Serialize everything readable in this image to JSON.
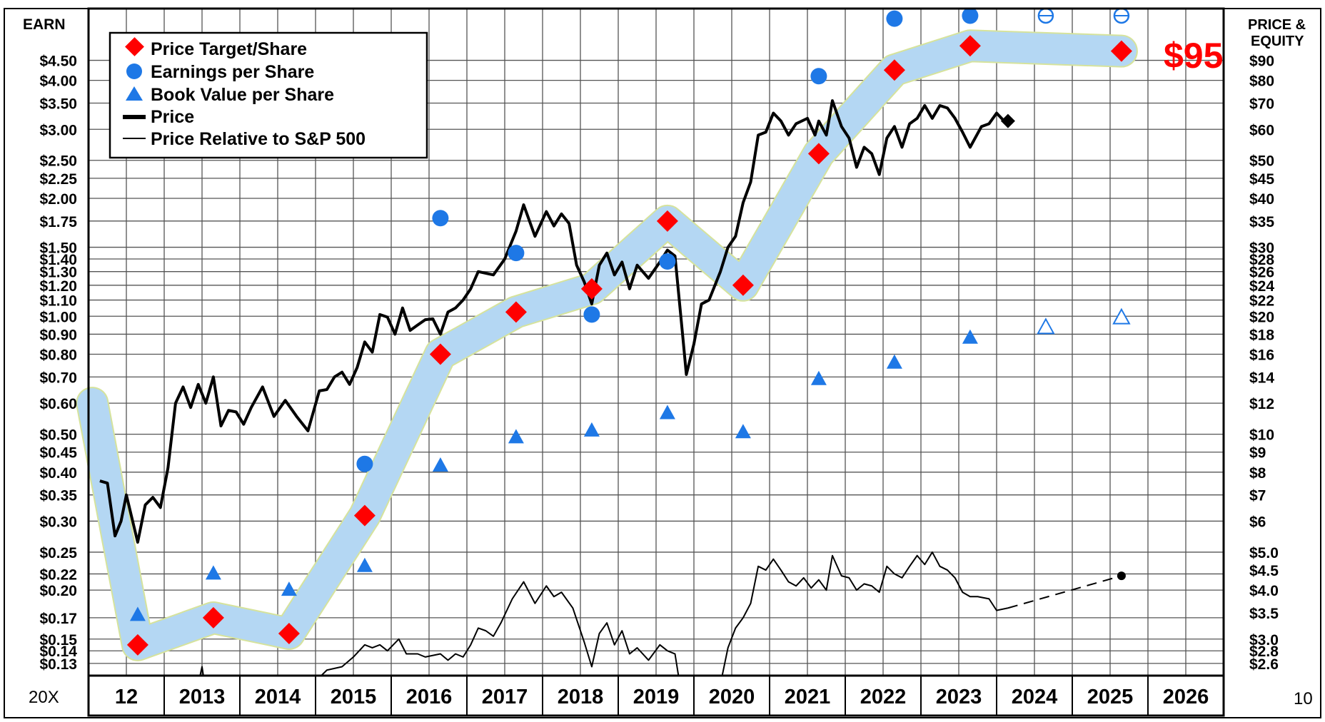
{
  "chart_data": {
    "type": "line",
    "scale": "log",
    "left_axis_title": "EARN",
    "right_axis_title_line1": "PRICE &",
    "right_axis_title_line2": "EQUITY",
    "corner_left": "20X",
    "corner_right": "10",
    "big_label": "$95",
    "left_ticks": [
      {
        "label": "$4.50",
        "value": 4.5
      },
      {
        "label": "$4.00",
        "value": 4.0
      },
      {
        "label": "$3.50",
        "value": 3.5
      },
      {
        "label": "$3.00",
        "value": 3.0
      },
      {
        "label": "$2.50",
        "value": 2.5
      },
      {
        "label": "$2.25",
        "value": 2.25
      },
      {
        "label": "$2.00",
        "value": 2.0
      },
      {
        "label": "$1.75",
        "value": 1.75
      },
      {
        "label": "$1.50",
        "value": 1.5
      },
      {
        "label": "$1.40",
        "value": 1.4
      },
      {
        "label": "$1.30",
        "value": 1.3
      },
      {
        "label": "$1.20",
        "value": 1.2
      },
      {
        "label": "$1.10",
        "value": 1.1
      },
      {
        "label": "$1.00",
        "value": 1.0
      },
      {
        "label": "$0.90",
        "value": 0.9
      },
      {
        "label": "$0.80",
        "value": 0.8
      },
      {
        "label": "$0.70",
        "value": 0.7
      },
      {
        "label": "$0.60",
        "value": 0.6
      },
      {
        "label": "$0.50",
        "value": 0.5
      },
      {
        "label": "$0.45",
        "value": 0.45
      },
      {
        "label": "$0.40",
        "value": 0.4
      },
      {
        "label": "$0.35",
        "value": 0.35
      },
      {
        "label": "$0.30",
        "value": 0.3
      },
      {
        "label": "$0.25",
        "value": 0.25
      },
      {
        "label": "$0.22",
        "value": 0.22
      },
      {
        "label": "$0.20",
        "value": 0.2
      },
      {
        "label": "$0.17",
        "value": 0.17
      },
      {
        "label": "$0.15",
        "value": 0.15
      },
      {
        "label": "$0.14",
        "value": 0.14
      },
      {
        "label": "$0.13",
        "value": 0.13
      }
    ],
    "right_ticks": [
      {
        "label": "$90",
        "value": 90
      },
      {
        "label": "$80",
        "value": 80
      },
      {
        "label": "$70",
        "value": 70
      },
      {
        "label": "$60",
        "value": 60
      },
      {
        "label": "$50",
        "value": 50
      },
      {
        "label": "$45",
        "value": 45
      },
      {
        "label": "$40",
        "value": 40
      },
      {
        "label": "$35",
        "value": 35
      },
      {
        "label": "$30",
        "value": 30
      },
      {
        "label": "$28",
        "value": 28
      },
      {
        "label": "$26",
        "value": 26
      },
      {
        "label": "$24",
        "value": 24
      },
      {
        "label": "$22",
        "value": 22
      },
      {
        "label": "$20",
        "value": 20
      },
      {
        "label": "$18",
        "value": 18
      },
      {
        "label": "$16",
        "value": 16
      },
      {
        "label": "$14",
        "value": 14
      },
      {
        "label": "$12",
        "value": 12
      },
      {
        "label": "$10",
        "value": 10
      },
      {
        "label": "$9",
        "value": 9
      },
      {
        "label": "$8",
        "value": 8
      },
      {
        "label": "$7",
        "value": 7
      },
      {
        "label": "$6",
        "value": 6
      },
      {
        "label": "$5.0",
        "value": 5.0
      },
      {
        "label": "$4.5",
        "value": 4.5
      },
      {
        "label": "$4.0",
        "value": 4.0
      },
      {
        "label": "$3.5",
        "value": 3.5
      },
      {
        "label": "$3.0",
        "value": 3.0
      },
      {
        "label": "$2.8",
        "value": 2.8
      },
      {
        "label": "$2.6",
        "value": 2.6
      }
    ],
    "x_labels": [
      "12",
      "2013",
      "2014",
      "2015",
      "2016",
      "2017",
      "2018",
      "2019",
      "2020",
      "2021",
      "2022",
      "2023",
      "2024",
      "2025",
      "2026"
    ],
    "legend": [
      {
        "label": "Price Target/Share",
        "marker": "red-diamond"
      },
      {
        "label": "Earnings per Share",
        "marker": "blue-circle"
      },
      {
        "label": "Book Value per Share",
        "marker": "blue-triangle"
      },
      {
        "label": "Price",
        "marker": "thick-black-line"
      },
      {
        "label": "Price Relative to S&P 500",
        "marker": "thin-black-line"
      }
    ],
    "colors": {
      "target": "#ff0000",
      "eps": "#1e78e6",
      "band": "#b4d7f3",
      "band_edge": "#d6e39c",
      "price": "#000000"
    },
    "price_target": [
      {
        "x": 2012.5,
        "y": 2.9
      },
      {
        "x": 2013.5,
        "y": 3.4
      },
      {
        "x": 2014.5,
        "y": 3.1
      },
      {
        "x": 2015.5,
        "y": 6.2
      },
      {
        "x": 2016.5,
        "y": 16
      },
      {
        "x": 2017.5,
        "y": 20.5
      },
      {
        "x": 2018.5,
        "y": 23.5
      },
      {
        "x": 2019.5,
        "y": 35
      },
      {
        "x": 2020.5,
        "y": 24
      },
      {
        "x": 2021.5,
        "y": 52
      },
      {
        "x": 2022.5,
        "y": 85
      },
      {
        "x": 2023.5,
        "y": 98
      },
      {
        "x": 2025.5,
        "y": 95
      }
    ],
    "target_band": [
      {
        "x": 2011.9,
        "y": 12
      },
      {
        "x": 2012.5,
        "y": 2.9
      },
      {
        "x": 2013.5,
        "y": 3.4
      },
      {
        "x": 2014.5,
        "y": 3.1
      },
      {
        "x": 2015.5,
        "y": 6.2
      },
      {
        "x": 2016.5,
        "y": 16
      },
      {
        "x": 2017.5,
        "y": 20.5
      },
      {
        "x": 2018.5,
        "y": 23.5
      },
      {
        "x": 2019.5,
        "y": 35
      },
      {
        "x": 2020.5,
        "y": 24
      },
      {
        "x": 2021.5,
        "y": 52
      },
      {
        "x": 2022.5,
        "y": 85
      },
      {
        "x": 2023.5,
        "y": 98
      },
      {
        "x": 2025.5,
        "y": 95
      }
    ],
    "eps": [
      {
        "x": 2015.5,
        "y": 0.42,
        "hollow": false
      },
      {
        "x": 2016.5,
        "y": 1.78,
        "hollow": false
      },
      {
        "x": 2017.5,
        "y": 1.45,
        "hollow": false
      },
      {
        "x": 2018.5,
        "y": 1.01,
        "hollow": false
      },
      {
        "x": 2019.5,
        "y": 1.38,
        "hollow": false
      },
      {
        "x": 2021.5,
        "y": 4.1,
        "hollow": false
      },
      {
        "x": 2022.5,
        "y": 5.75,
        "hollow": false
      },
      {
        "x": 2023.5,
        "y": 5.85,
        "hollow": false
      },
      {
        "x": 2024.5,
        "y": 5.85,
        "hollow": true
      },
      {
        "x": 2025.5,
        "y": 5.85,
        "hollow": true
      }
    ],
    "book_value": [
      {
        "x": 2012.5,
        "y": 3.45,
        "hollow": false
      },
      {
        "x": 2013.5,
        "y": 4.4,
        "hollow": false
      },
      {
        "x": 2014.5,
        "y": 4.0,
        "hollow": false
      },
      {
        "x": 2015.5,
        "y": 4.6,
        "hollow": false
      },
      {
        "x": 2016.5,
        "y": 8.3,
        "hollow": false
      },
      {
        "x": 2017.5,
        "y": 9.8,
        "hollow": false
      },
      {
        "x": 2018.5,
        "y": 10.2,
        "hollow": false
      },
      {
        "x": 2019.5,
        "y": 11.3,
        "hollow": false
      },
      {
        "x": 2020.5,
        "y": 10.1,
        "hollow": false
      },
      {
        "x": 2021.5,
        "y": 13.8,
        "hollow": false
      },
      {
        "x": 2022.5,
        "y": 15.2,
        "hollow": false
      },
      {
        "x": 2023.5,
        "y": 17.6,
        "hollow": false
      },
      {
        "x": 2024.5,
        "y": 18.7,
        "hollow": true
      },
      {
        "x": 2025.5,
        "y": 19.8,
        "hollow": true
      }
    ],
    "price": [
      {
        "x": 2012.0,
        "y": 7.6
      },
      {
        "x": 2012.1,
        "y": 7.5
      },
      {
        "x": 2012.2,
        "y": 5.5
      },
      {
        "x": 2012.28,
        "y": 6.0
      },
      {
        "x": 2012.35,
        "y": 7.0
      },
      {
        "x": 2012.5,
        "y": 5.3
      },
      {
        "x": 2012.6,
        "y": 6.6
      },
      {
        "x": 2012.7,
        "y": 6.9
      },
      {
        "x": 2012.8,
        "y": 6.5
      },
      {
        "x": 2012.9,
        "y": 8.2
      },
      {
        "x": 2013.0,
        "y": 12.0
      },
      {
        "x": 2013.1,
        "y": 13.2
      },
      {
        "x": 2013.2,
        "y": 11.7
      },
      {
        "x": 2013.3,
        "y": 13.4
      },
      {
        "x": 2013.4,
        "y": 12.0
      },
      {
        "x": 2013.5,
        "y": 14.0
      },
      {
        "x": 2013.6,
        "y": 10.5
      },
      {
        "x": 2013.7,
        "y": 11.5
      },
      {
        "x": 2013.8,
        "y": 11.4
      },
      {
        "x": 2013.9,
        "y": 10.6
      },
      {
        "x": 2014.0,
        "y": 11.7
      },
      {
        "x": 2014.15,
        "y": 13.2
      },
      {
        "x": 2014.3,
        "y": 11.1
      },
      {
        "x": 2014.45,
        "y": 12.2
      },
      {
        "x": 2014.6,
        "y": 11.1
      },
      {
        "x": 2014.75,
        "y": 10.2
      },
      {
        "x": 2014.9,
        "y": 12.9
      },
      {
        "x": 2015.0,
        "y": 13.0
      },
      {
        "x": 2015.1,
        "y": 14.0
      },
      {
        "x": 2015.2,
        "y": 14.4
      },
      {
        "x": 2015.3,
        "y": 13.4
      },
      {
        "x": 2015.4,
        "y": 14.8
      },
      {
        "x": 2015.5,
        "y": 17.2
      },
      {
        "x": 2015.6,
        "y": 16.2
      },
      {
        "x": 2015.7,
        "y": 20.2
      },
      {
        "x": 2015.8,
        "y": 19.9
      },
      {
        "x": 2015.9,
        "y": 18.0
      },
      {
        "x": 2016.0,
        "y": 21.0
      },
      {
        "x": 2016.1,
        "y": 18.4
      },
      {
        "x": 2016.2,
        "y": 19.0
      },
      {
        "x": 2016.3,
        "y": 19.6
      },
      {
        "x": 2016.4,
        "y": 19.7
      },
      {
        "x": 2016.5,
        "y": 18.0
      },
      {
        "x": 2016.6,
        "y": 20.5
      },
      {
        "x": 2016.7,
        "y": 21.0
      },
      {
        "x": 2016.8,
        "y": 22.0
      },
      {
        "x": 2016.9,
        "y": 23.5
      },
      {
        "x": 2017.0,
        "y": 26.0
      },
      {
        "x": 2017.2,
        "y": 25.5
      },
      {
        "x": 2017.35,
        "y": 28.0
      },
      {
        "x": 2017.5,
        "y": 33.0
      },
      {
        "x": 2017.6,
        "y": 38.5
      },
      {
        "x": 2017.75,
        "y": 32.0
      },
      {
        "x": 2017.9,
        "y": 37.0
      },
      {
        "x": 2018.0,
        "y": 34.0
      },
      {
        "x": 2018.1,
        "y": 36.5
      },
      {
        "x": 2018.2,
        "y": 34.5
      },
      {
        "x": 2018.3,
        "y": 27.0
      },
      {
        "x": 2018.4,
        "y": 24.5
      },
      {
        "x": 2018.5,
        "y": 21.5
      },
      {
        "x": 2018.6,
        "y": 27.0
      },
      {
        "x": 2018.7,
        "y": 29.0
      },
      {
        "x": 2018.8,
        "y": 25.5
      },
      {
        "x": 2018.9,
        "y": 27.5
      },
      {
        "x": 2019.0,
        "y": 23.5
      },
      {
        "x": 2019.1,
        "y": 27.0
      },
      {
        "x": 2019.25,
        "y": 25.0
      },
      {
        "x": 2019.4,
        "y": 27.5
      },
      {
        "x": 2019.5,
        "y": 29.5
      },
      {
        "x": 2019.6,
        "y": 28.5
      },
      {
        "x": 2019.7,
        "y": 18.0
      },
      {
        "x": 2019.75,
        "y": 14.2
      },
      {
        "x": 2019.85,
        "y": 17.0
      },
      {
        "x": 2019.95,
        "y": 21.5
      },
      {
        "x": 2020.05,
        "y": 22.0
      },
      {
        "x": 2020.2,
        "y": 26.0
      },
      {
        "x": 2020.3,
        "y": 30.0
      },
      {
        "x": 2020.4,
        "y": 32.0
      },
      {
        "x": 2020.5,
        "y": 39.0
      },
      {
        "x": 2020.6,
        "y": 44.0
      },
      {
        "x": 2020.7,
        "y": 58.0
      },
      {
        "x": 2020.8,
        "y": 59.0
      },
      {
        "x": 2020.9,
        "y": 66.0
      },
      {
        "x": 2021.0,
        "y": 63.0
      },
      {
        "x": 2021.1,
        "y": 58.0
      },
      {
        "x": 2021.2,
        "y": 62.0
      },
      {
        "x": 2021.35,
        "y": 64.0
      },
      {
        "x": 2021.45,
        "y": 58.0
      },
      {
        "x": 2021.5,
        "y": 63.0
      },
      {
        "x": 2021.6,
        "y": 58.0
      },
      {
        "x": 2021.68,
        "y": 71.0
      },
      {
        "x": 2021.8,
        "y": 61.0
      },
      {
        "x": 2021.9,
        "y": 57.0
      },
      {
        "x": 2022.0,
        "y": 48.0
      },
      {
        "x": 2022.1,
        "y": 54.0
      },
      {
        "x": 2022.2,
        "y": 52.0
      },
      {
        "x": 2022.3,
        "y": 46.0
      },
      {
        "x": 2022.4,
        "y": 57.0
      },
      {
        "x": 2022.5,
        "y": 61.0
      },
      {
        "x": 2022.6,
        "y": 54.0
      },
      {
        "x": 2022.7,
        "y": 62.0
      },
      {
        "x": 2022.8,
        "y": 64.0
      },
      {
        "x": 2022.9,
        "y": 69.0
      },
      {
        "x": 2023.0,
        "y": 64.0
      },
      {
        "x": 2023.1,
        "y": 69.0
      },
      {
        "x": 2023.2,
        "y": 68.0
      },
      {
        "x": 2023.3,
        "y": 64.0
      },
      {
        "x": 2023.4,
        "y": 59.0
      },
      {
        "x": 2023.5,
        "y": 54.0
      },
      {
        "x": 2023.65,
        "y": 61.0
      },
      {
        "x": 2023.75,
        "y": 62.0
      },
      {
        "x": 2023.85,
        "y": 66.0
      },
      {
        "x": 2023.95,
        "y": 63.0
      }
    ],
    "price_last": {
      "x": 2024.0,
      "y": 63.0
    },
    "relative": [
      {
        "x": 2012.0,
        "y": 1.8
      },
      {
        "x": 2012.6,
        "y": 1.85
      },
      {
        "x": 2013.3,
        "y": 2.3
      },
      {
        "x": 2013.35,
        "y": 2.55
      },
      {
        "x": 2013.4,
        "y": 2.2
      },
      {
        "x": 2014.6,
        "y": 2.1
      },
      {
        "x": 2015.0,
        "y": 2.5
      },
      {
        "x": 2015.2,
        "y": 2.55
      },
      {
        "x": 2015.35,
        "y": 2.7
      },
      {
        "x": 2015.5,
        "y": 2.9
      },
      {
        "x": 2015.6,
        "y": 2.85
      },
      {
        "x": 2015.7,
        "y": 2.9
      },
      {
        "x": 2015.8,
        "y": 2.8
      },
      {
        "x": 2015.95,
        "y": 3.0
      },
      {
        "x": 2016.05,
        "y": 2.75
      },
      {
        "x": 2016.2,
        "y": 2.75
      },
      {
        "x": 2016.3,
        "y": 2.7
      },
      {
        "x": 2016.5,
        "y": 2.75
      },
      {
        "x": 2016.6,
        "y": 2.65
      },
      {
        "x": 2016.7,
        "y": 2.75
      },
      {
        "x": 2016.8,
        "y": 2.7
      },
      {
        "x": 2016.9,
        "y": 2.9
      },
      {
        "x": 2017.0,
        "y": 3.2
      },
      {
        "x": 2017.1,
        "y": 3.15
      },
      {
        "x": 2017.2,
        "y": 3.05
      },
      {
        "x": 2017.3,
        "y": 3.3
      },
      {
        "x": 2017.45,
        "y": 3.8
      },
      {
        "x": 2017.6,
        "y": 4.2
      },
      {
        "x": 2017.75,
        "y": 3.7
      },
      {
        "x": 2017.9,
        "y": 4.1
      },
      {
        "x": 2018.0,
        "y": 3.85
      },
      {
        "x": 2018.1,
        "y": 3.95
      },
      {
        "x": 2018.25,
        "y": 3.6
      },
      {
        "x": 2018.4,
        "y": 2.95
      },
      {
        "x": 2018.5,
        "y": 2.55
      },
      {
        "x": 2018.6,
        "y": 3.1
      },
      {
        "x": 2018.7,
        "y": 3.3
      },
      {
        "x": 2018.8,
        "y": 2.9
      },
      {
        "x": 2018.9,
        "y": 3.15
      },
      {
        "x": 2019.0,
        "y": 2.75
      },
      {
        "x": 2019.1,
        "y": 2.85
      },
      {
        "x": 2019.25,
        "y": 2.65
      },
      {
        "x": 2019.4,
        "y": 2.9
      },
      {
        "x": 2019.5,
        "y": 2.8
      },
      {
        "x": 2019.6,
        "y": 2.75
      },
      {
        "x": 2019.68,
        "y": 2.2
      },
      {
        "x": 2020.2,
        "y": 2.3
      },
      {
        "x": 2020.3,
        "y": 2.85
      },
      {
        "x": 2020.4,
        "y": 3.2
      },
      {
        "x": 2020.5,
        "y": 3.4
      },
      {
        "x": 2020.6,
        "y": 3.7
      },
      {
        "x": 2020.7,
        "y": 4.6
      },
      {
        "x": 2020.8,
        "y": 4.5
      },
      {
        "x": 2020.9,
        "y": 4.8
      },
      {
        "x": 2021.0,
        "y": 4.5
      },
      {
        "x": 2021.1,
        "y": 4.2
      },
      {
        "x": 2021.2,
        "y": 4.1
      },
      {
        "x": 2021.3,
        "y": 4.3
      },
      {
        "x": 2021.4,
        "y": 4.05
      },
      {
        "x": 2021.5,
        "y": 4.25
      },
      {
        "x": 2021.6,
        "y": 4.0
      },
      {
        "x": 2021.68,
        "y": 4.9
      },
      {
        "x": 2021.8,
        "y": 4.35
      },
      {
        "x": 2021.9,
        "y": 4.3
      },
      {
        "x": 2022.0,
        "y": 4.0
      },
      {
        "x": 2022.1,
        "y": 4.15
      },
      {
        "x": 2022.2,
        "y": 4.1
      },
      {
        "x": 2022.3,
        "y": 3.95
      },
      {
        "x": 2022.4,
        "y": 4.6
      },
      {
        "x": 2022.5,
        "y": 4.4
      },
      {
        "x": 2022.6,
        "y": 4.3
      },
      {
        "x": 2022.7,
        "y": 4.6
      },
      {
        "x": 2022.8,
        "y": 4.9
      },
      {
        "x": 2022.9,
        "y": 4.65
      },
      {
        "x": 2023.0,
        "y": 5.0
      },
      {
        "x": 2023.1,
        "y": 4.6
      },
      {
        "x": 2023.2,
        "y": 4.5
      },
      {
        "x": 2023.3,
        "y": 4.3
      },
      {
        "x": 2023.4,
        "y": 3.95
      },
      {
        "x": 2023.5,
        "y": 3.85
      },
      {
        "x": 2023.6,
        "y": 3.85
      },
      {
        "x": 2023.75,
        "y": 3.8
      },
      {
        "x": 2023.85,
        "y": 3.55
      },
      {
        "x": 2024.0,
        "y": 3.6
      }
    ],
    "relative_projection": [
      {
        "x": 2024.0,
        "y": 3.6
      },
      {
        "x": 2025.5,
        "y": 4.35
      }
    ]
  }
}
